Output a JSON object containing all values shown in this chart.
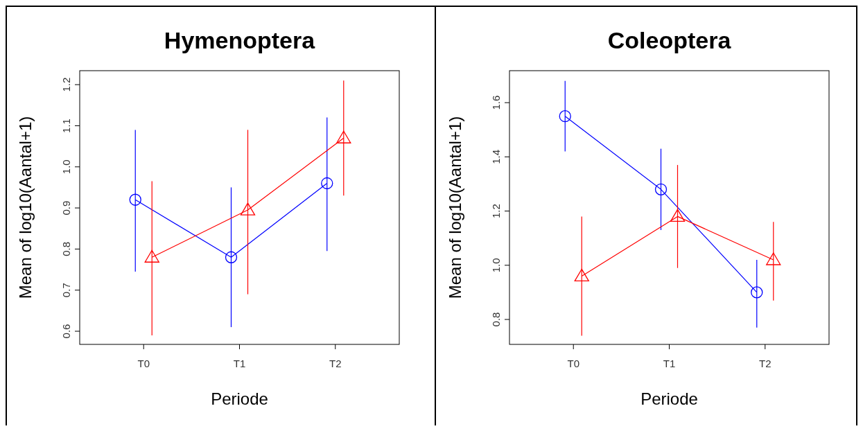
{
  "chart_data": [
    {
      "type": "line",
      "title": "Hymenoptera",
      "xlabel": "Periode",
      "ylabel": "Mean of log10(Aantal+1)",
      "categories": [
        "T0",
        "T1",
        "T2"
      ],
      "ylim": [
        0.568,
        1.234
      ],
      "yticks": [
        0.6,
        0.7,
        0.8,
        0.9,
        {
          "value": 1,
          "label": "1.0"
        },
        1.1,
        1.2
      ],
      "grid": false,
      "series": [
        {
          "color": "#0000ff",
          "marker": "circle",
          "values": [
            0.92,
            0.78,
            0.96
          ],
          "errors": [
            [
              0.745,
              1.09
            ],
            [
              0.61,
              0.95
            ],
            [
              0.795,
              1.12
            ]
          ]
        },
        {
          "color": "#ff0000",
          "marker": "triangle",
          "values": [
            0.78,
            0.895,
            1.07
          ],
          "errors": [
            [
              0.59,
              0.965
            ],
            [
              0.69,
              1.09
            ],
            [
              0.93,
              1.21
            ]
          ]
        }
      ]
    },
    {
      "type": "line",
      "title": "Coleoptera",
      "xlabel": "Periode",
      "ylabel": "Mean of log10(Aantal+1)",
      "categories": [
        "T0",
        "T1",
        "T2"
      ],
      "ylim": [
        0.708,
        1.718
      ],
      "yticks": [
        0.8,
        {
          "value": 1,
          "label": "1.0"
        },
        1.2,
        1.4,
        1.6
      ],
      "grid": false,
      "series": [
        {
          "color": "#0000ff",
          "marker": "circle",
          "values": [
            1.55,
            1.28,
            0.9
          ],
          "errors": [
            [
              1.42,
              1.68
            ],
            [
              1.13,
              1.43
            ],
            [
              0.77,
              1.02
            ]
          ]
        },
        {
          "color": "#ff0000",
          "marker": "triangle",
          "values": [
            0.96,
            1.18,
            1.02
          ],
          "errors": [
            [
              0.74,
              1.18
            ],
            [
              0.99,
              1.37
            ],
            [
              0.87,
              1.16
            ]
          ]
        }
      ]
    }
  ]
}
